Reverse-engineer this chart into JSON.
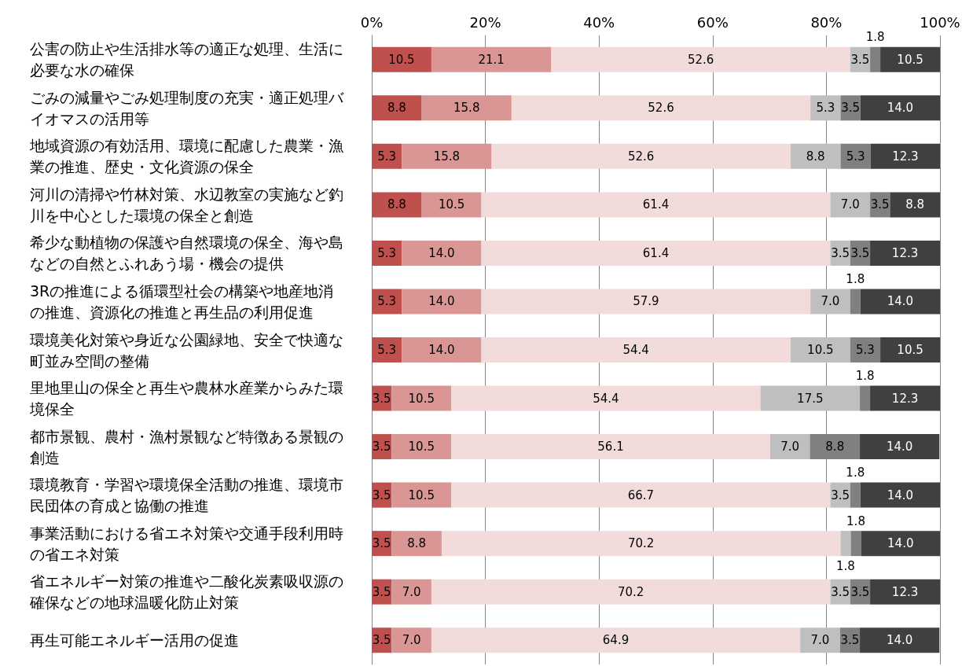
{
  "chart_data": {
    "type": "bar",
    "orientation": "horizontal",
    "stacked": true,
    "grid": "x",
    "categories": [
      "公害の防止や生活排水等の適正な処理、生活に必要な水の確保",
      "ごみの減量やごみ処理制度の充実・適正処理バイオマスの活用等",
      "地域資源の有効活用、環境に配慮した農業・漁業の推進、歴史・文化資源の保全",
      "河川の清掃や竹林対策、水辺教室の実施など釣川を中心とした環境の保全と創造",
      "希少な動植物の保護や自然環境の保全、海や島などの自然とふれあう場・機会の提供",
      "3Rの推進による循環型社会の構築や地産地消の推進、資源化の推進と再生品の利用促進",
      "環境美化対策や身近な公園緑地、安全で快適な町並み空間の整備",
      "里地里山の保全と再生や農林水産業からみた環境保全",
      "都市景観、農村・漁村景観など特徴ある景観の創造",
      "環境教育・学習や環境保全活動の推進、環境市民団体の育成と協働の推進",
      "事業活動における省エネ対策や交通手段利用時の省エネ対策",
      "省エネルギー対策の推進や二酸化炭素吸収源の確保などの地球温暖化防止対策",
      "再生可能エネルギー活用の促進"
    ],
    "xlim": [
      0,
      100
    ],
    "xticks": [
      {
        "value": 0,
        "label": "0%"
      },
      {
        "value": 20,
        "label": "20%"
      },
      {
        "value": 40,
        "label": "40%"
      },
      {
        "value": 60,
        "label": "60%"
      },
      {
        "value": 80,
        "label": "80%"
      },
      {
        "value": 100,
        "label": "100%"
      }
    ],
    "series": [
      {
        "color": "#c0504d",
        "values": [
          10.5,
          8.8,
          5.3,
          8.8,
          5.3,
          5.3,
          5.3,
          3.5,
          3.5,
          3.5,
          3.5,
          3.5,
          3.5
        ],
        "value_labels": [
          "10.5",
          "8.8",
          "5.3",
          "8.8",
          "5.3",
          "5.3",
          "5.3",
          "3.5",
          "3.5",
          "3.5",
          "3.5",
          "3.5",
          "3.5"
        ]
      },
      {
        "color": "#d99694",
        "values": [
          21.1,
          15.8,
          15.8,
          10.5,
          14.0,
          14.0,
          14.0,
          10.5,
          10.5,
          10.5,
          8.8,
          7.0,
          7.0
        ],
        "value_labels": [
          "21.1",
          "15.8",
          "15.8",
          "10.5",
          "14.0",
          "14.0",
          "14.0",
          "10.5",
          "10.5",
          "10.5",
          "8.8",
          "7.0",
          "7.0"
        ]
      },
      {
        "color": "#f2dcdb",
        "values": [
          52.6,
          52.6,
          52.6,
          61.4,
          61.4,
          57.9,
          54.4,
          54.4,
          56.1,
          66.7,
          70.2,
          70.2,
          64.9
        ],
        "value_labels": [
          "52.6",
          "52.6",
          "52.6",
          "61.4",
          "61.4",
          "57.9",
          "54.4",
          "54.4",
          "56.1",
          "66.7",
          "70.2",
          "70.2",
          "64.9"
        ]
      },
      {
        "color": "#bfbfbf",
        "values": [
          3.5,
          5.3,
          8.8,
          7.0,
          3.5,
          7.0,
          10.5,
          17.5,
          7.0,
          3.5,
          1.8,
          3.5,
          7.0
        ],
        "value_labels": [
          "3.5",
          "5.3",
          "8.8",
          "7.0",
          "3.5",
          "7.0",
          "10.5",
          "17.5",
          "7.0",
          "3.5",
          "1.8",
          "3.5",
          "7.0"
        ]
      },
      {
        "color": "#808080",
        "values": [
          1.8,
          3.5,
          5.3,
          3.5,
          3.5,
          1.8,
          5.3,
          1.8,
          8.8,
          1.8,
          1.8,
          3.5,
          3.5
        ],
        "value_labels": [
          "1.8",
          "3.5",
          "5.3",
          "3.5",
          "3.5",
          "1.8",
          "5.3",
          "1.8",
          "8.8",
          "1.8",
          "1.8",
          "3.5",
          "3.5"
        ]
      },
      {
        "color": "#404040",
        "values": [
          10.5,
          14.0,
          12.3,
          8.8,
          12.3,
          14.0,
          10.5,
          12.3,
          14.0,
          14.0,
          14.0,
          12.3,
          14.0
        ],
        "value_labels": [
          "10.5",
          "14.0",
          "12.3",
          "8.8",
          "12.3",
          "14.0",
          "10.5",
          "12.3",
          "14.0",
          "14.0",
          "14.0",
          "12.3",
          "14.0"
        ]
      }
    ]
  }
}
